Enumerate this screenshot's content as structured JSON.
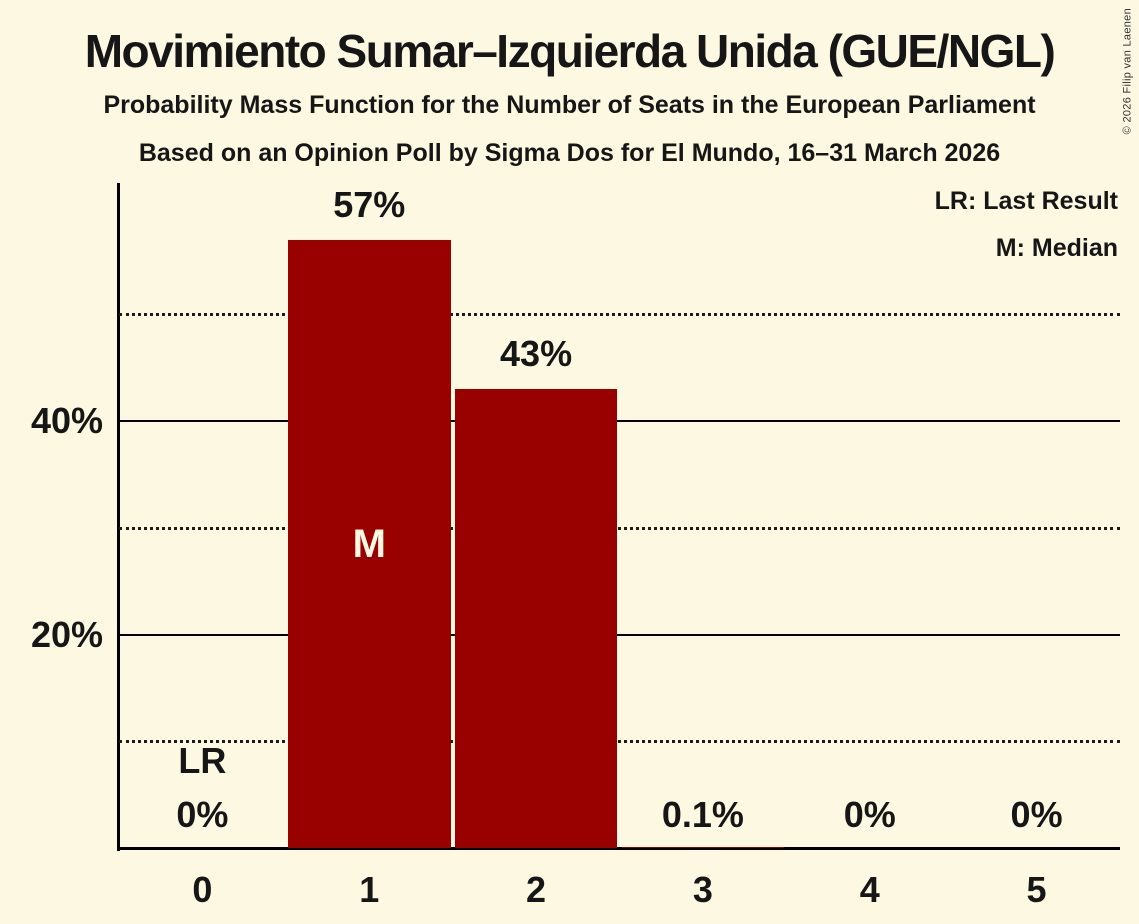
{
  "header": {
    "title": "Movimiento Sumar–Izquierda Unida (GUE/NGL)",
    "subtitle1": "Probability Mass Function for the Number of Seats in the European Parliament",
    "subtitle2": "Based on an Opinion Poll by Sigma Dos for El Mundo, 16–31 March 2026"
  },
  "legend": {
    "lr": "LR: Last Result",
    "m": "M: Median"
  },
  "copyright": "© 2026 Filip van Laenen",
  "colors": {
    "background": "#FDF8E2",
    "bar": "#990000",
    "text": "#161616",
    "median_text": "#FDF8E2"
  },
  "chart_data": {
    "type": "bar",
    "title": "Movimiento Sumar–Izquierda Unida (GUE/NGL)",
    "categories": [
      "0",
      "1",
      "2",
      "3",
      "4",
      "5"
    ],
    "values": [
      0,
      57,
      43,
      0.1,
      0,
      0
    ],
    "value_labels": [
      "0%",
      "57%",
      "43%",
      "0.1%",
      "0%",
      "0%"
    ],
    "xlabel": "",
    "ylabel": "",
    "ylim": [
      0,
      62.3
    ],
    "yticks": [
      {
        "value": 20,
        "label": "20%"
      },
      {
        "value": 40,
        "label": "40%"
      }
    ],
    "solid_gridlines": [
      20,
      40
    ],
    "dotted_gridlines": [
      10,
      30,
      50
    ],
    "grid": "horizontal",
    "legend_position": "top-right",
    "median_index": 1,
    "median_label": "M",
    "last_result_index": 0,
    "last_result_label": "LR"
  }
}
